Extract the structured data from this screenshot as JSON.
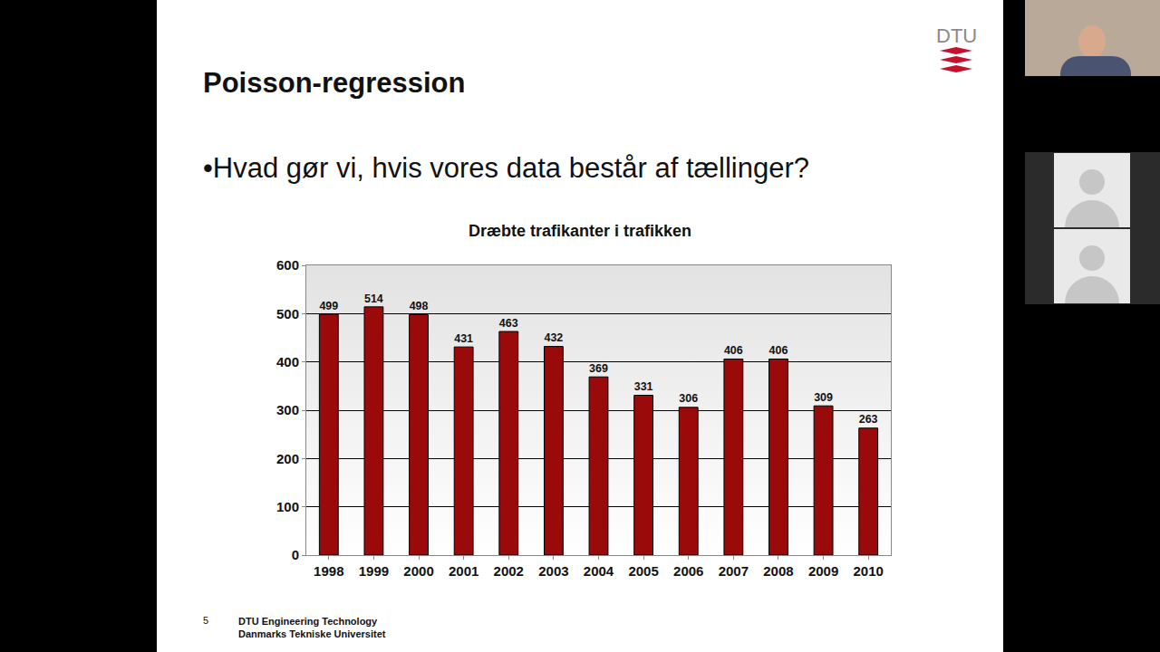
{
  "slide": {
    "title": "Poisson-regression",
    "bullet": "Hvad gør vi, hvis vores data består af tællinger?",
    "logo": "DTU",
    "page_number": 5,
    "footer": [
      "DTU Engineering Technology",
      "Danmarks Tekniske Universitet"
    ]
  },
  "chart_data": {
    "type": "bar",
    "title": "Dræbte trafikanter i trafikken",
    "categories": [
      "1998",
      "1999",
      "2000",
      "2001",
      "2002",
      "2003",
      "2004",
      "2005",
      "2006",
      "2007",
      "2008",
      "2009",
      "2010"
    ],
    "values": [
      499,
      514,
      498,
      431,
      463,
      432,
      369,
      331,
      306,
      406,
      406,
      309,
      263
    ],
    "color": "#9b0a0a",
    "ylim": [
      0,
      600
    ],
    "yticks": [
      0,
      100,
      200,
      300,
      400,
      500,
      600
    ],
    "grid": true,
    "data_labels": true
  }
}
